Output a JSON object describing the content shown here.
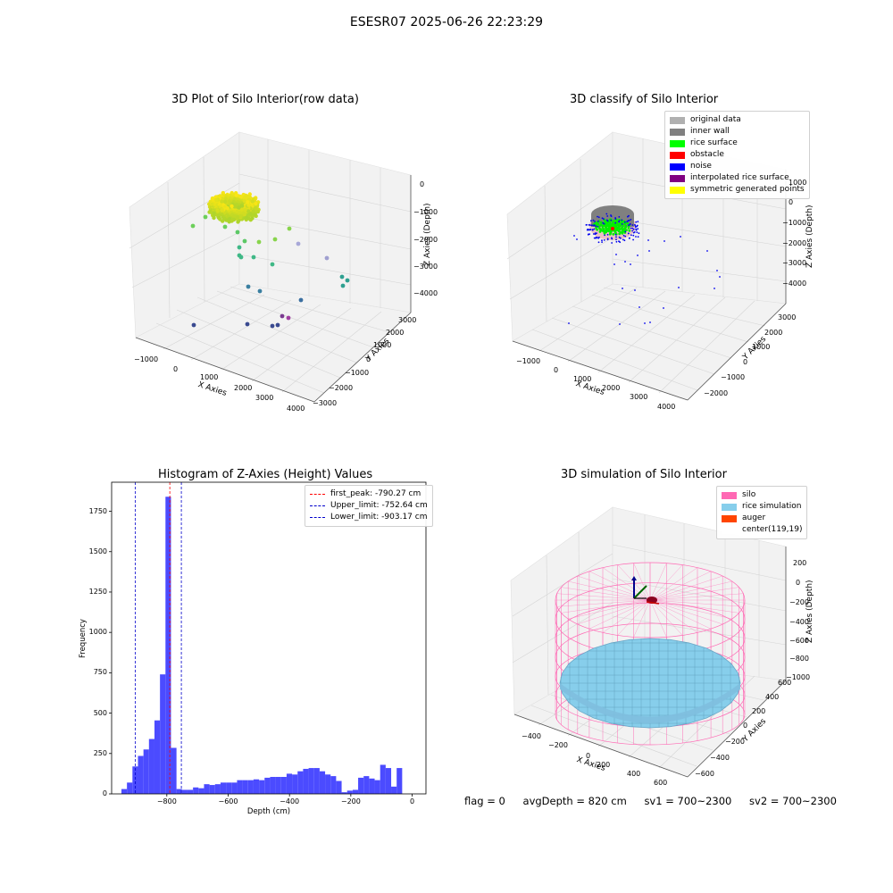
{
  "suptitle": "ESESR07 2025-06-26 22:23:29",
  "footer": {
    "flag": "flag = 0",
    "avg_depth": "avgDepth = 820 cm",
    "sv1": "sv1 = 700~2300",
    "sv2": "sv2 = 700~2300"
  },
  "chart_data": [
    {
      "type": "scatter",
      "projection": "3d",
      "title": "3D Plot of Silo Interior(row data)",
      "xlabel": "X Axies",
      "ylabel": "Y Axies",
      "zlabel": "Z Axies (Depth)",
      "xticks": [
        "−1000",
        "0",
        "1000",
        "2000",
        "3000",
        "4000"
      ],
      "yticks": [
        "−3000",
        "−2000",
        "−1000",
        "0",
        "1000",
        "2000",
        "3000"
      ],
      "zticks": [
        "−4000",
        "−3000",
        "−2000",
        "−1000",
        "0"
      ],
      "grid": true,
      "colormap": "viridis"
    },
    {
      "type": "scatter",
      "projection": "3d",
      "title": "3D classify of Silo Interior",
      "xlabel": "X Axies",
      "ylabel": "Y Axies",
      "zlabel": "Z Axies (Depth)",
      "xticks": [
        "−1000",
        "0",
        "1000",
        "2000",
        "3000",
        "4000"
      ],
      "yticks": [
        "−2000",
        "−1000",
        "0",
        "1000",
        "2000",
        "3000"
      ],
      "zticks": [
        "−4000",
        "−3000",
        "−2000",
        "−1000",
        "0",
        "1000"
      ],
      "grid": true,
      "legend_position": "top-right",
      "legend": [
        {
          "label": "original data",
          "color": "#b0b0b0"
        },
        {
          "label": "inner wall",
          "color": "#808080"
        },
        {
          "label": "rice surface",
          "color": "#00ff00"
        },
        {
          "label": "obstacle",
          "color": "#ff0000"
        },
        {
          "label": "noise",
          "color": "#0000ff"
        },
        {
          "label": "interpolated rice surface",
          "color": "#800080"
        },
        {
          "label": "symmetric generated points",
          "color": "#ffff00"
        }
      ]
    },
    {
      "type": "bar",
      "title": "Histogram of Z-Axies (Height) Values",
      "xlabel": "Depth (cm)",
      "ylabel": "Frequency",
      "xlim": [
        -980,
        45
      ],
      "ylim": [
        0,
        1930
      ],
      "xticks": [
        -800,
        -600,
        -400,
        -200,
        0
      ],
      "yticks": [
        0,
        250,
        500,
        750,
        1000,
        1250,
        1500,
        1750
      ],
      "bar_color": "#4b4bff",
      "bin_width": 17.95,
      "bin_start": -948,
      "values": [
        30,
        70,
        170,
        235,
        275,
        340,
        455,
        740,
        1840,
        285,
        30,
        25,
        25,
        40,
        35,
        60,
        55,
        60,
        70,
        70,
        70,
        85,
        85,
        85,
        90,
        85,
        100,
        105,
        105,
        105,
        125,
        120,
        140,
        155,
        160,
        160,
        140,
        120,
        110,
        80,
        10,
        20,
        25,
        100,
        110,
        95,
        85,
        180,
        160,
        45,
        160
      ],
      "lines": [
        {
          "label": "first_peak: -790.27 cm",
          "x": -790.27,
          "color": "#ff0000"
        },
        {
          "label": "Upper_limit: -752.64 cm",
          "x": -752.64,
          "color": "#0000cc"
        },
        {
          "label": "Lower_limit: -903.17 cm",
          "x": -903.17,
          "color": "#0000cc"
        }
      ],
      "legend_position": "top-right"
    },
    {
      "type": "surface",
      "projection": "3d",
      "title": "3D simulation of Silo Interior",
      "xlabel": "X Axies",
      "ylabel": "Y Axies",
      "zlabel": "Z Axies (Depth)",
      "xticks": [
        "−400",
        "−200",
        "0",
        "200",
        "400",
        "600"
      ],
      "yticks": [
        "−600",
        "−400",
        "−200",
        "0",
        "200",
        "400",
        "600"
      ],
      "zticks": [
        "−1000",
        "−800",
        "−600",
        "−400",
        "−200",
        "0",
        "200"
      ],
      "grid": true,
      "legend_position": "top-right",
      "legend": [
        {
          "label": "silo",
          "color": "#ff69b4"
        },
        {
          "label": "rice simulation",
          "color": "#87ceeb"
        },
        {
          "label": "auger",
          "color": "#ff4500"
        },
        {
          "label": "center(119,19)",
          "color": "#ffffff"
        }
      ]
    }
  ]
}
